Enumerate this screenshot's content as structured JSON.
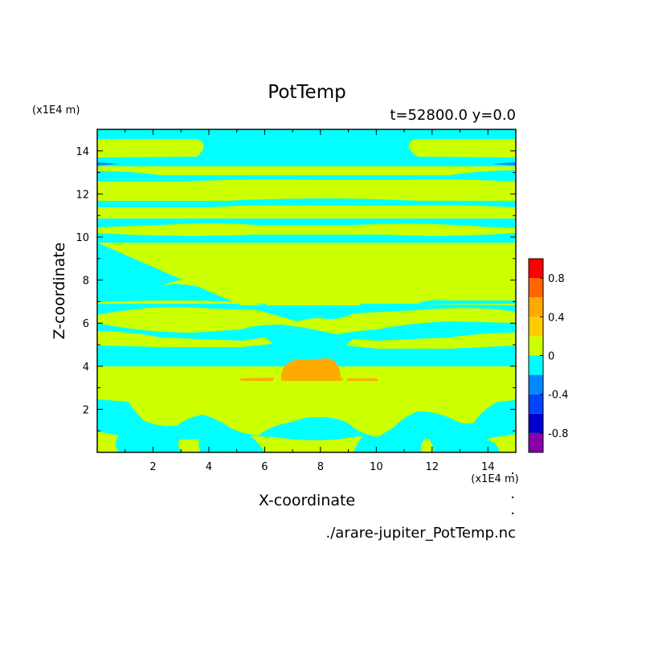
{
  "chart_data": {
    "type": "heatmap",
    "title": "PotTemp",
    "subtitle": "t=52800.0 y=0.0",
    "xlabel": "X-coordinate",
    "ylabel": "Z-coordinate",
    "x_unit": "(x1E4 m)",
    "y_unit": "(x1E4 m)",
    "xlim": [
      0,
      15
    ],
    "ylim": [
      0,
      15
    ],
    "x_ticks": [
      "2",
      "4",
      "6",
      "8",
      "10",
      "12",
      "14"
    ],
    "y_ticks": [
      "2",
      "4",
      "6",
      "8",
      "10",
      "12",
      "14"
    ],
    "footer": "./arare-jupiter_PotTemp.nc",
    "colorbar": {
      "levels": [
        -1.0,
        -0.8,
        -0.6,
        -0.4,
        -0.2,
        0.0,
        0.2,
        0.4,
        0.6,
        0.8,
        1.0
      ],
      "colors": [
        "#8800aa",
        "#0000cc",
        "#0044ff",
        "#0088ff",
        "#00ffff",
        "#ccff00",
        "#ffcc00",
        "#ffaa00",
        "#ff6600",
        "#ff0000",
        "#ffaaaa"
      ],
      "tick_labels": [
        "-0.8",
        "-0.4",
        "0",
        "0.4",
        "0.8"
      ]
    },
    "colors": {
      "background_band": "#00ffff",
      "positive_band": "#ccff00",
      "warm_core": "#ffaa00",
      "cool_edge": "#0088ff"
    }
  }
}
